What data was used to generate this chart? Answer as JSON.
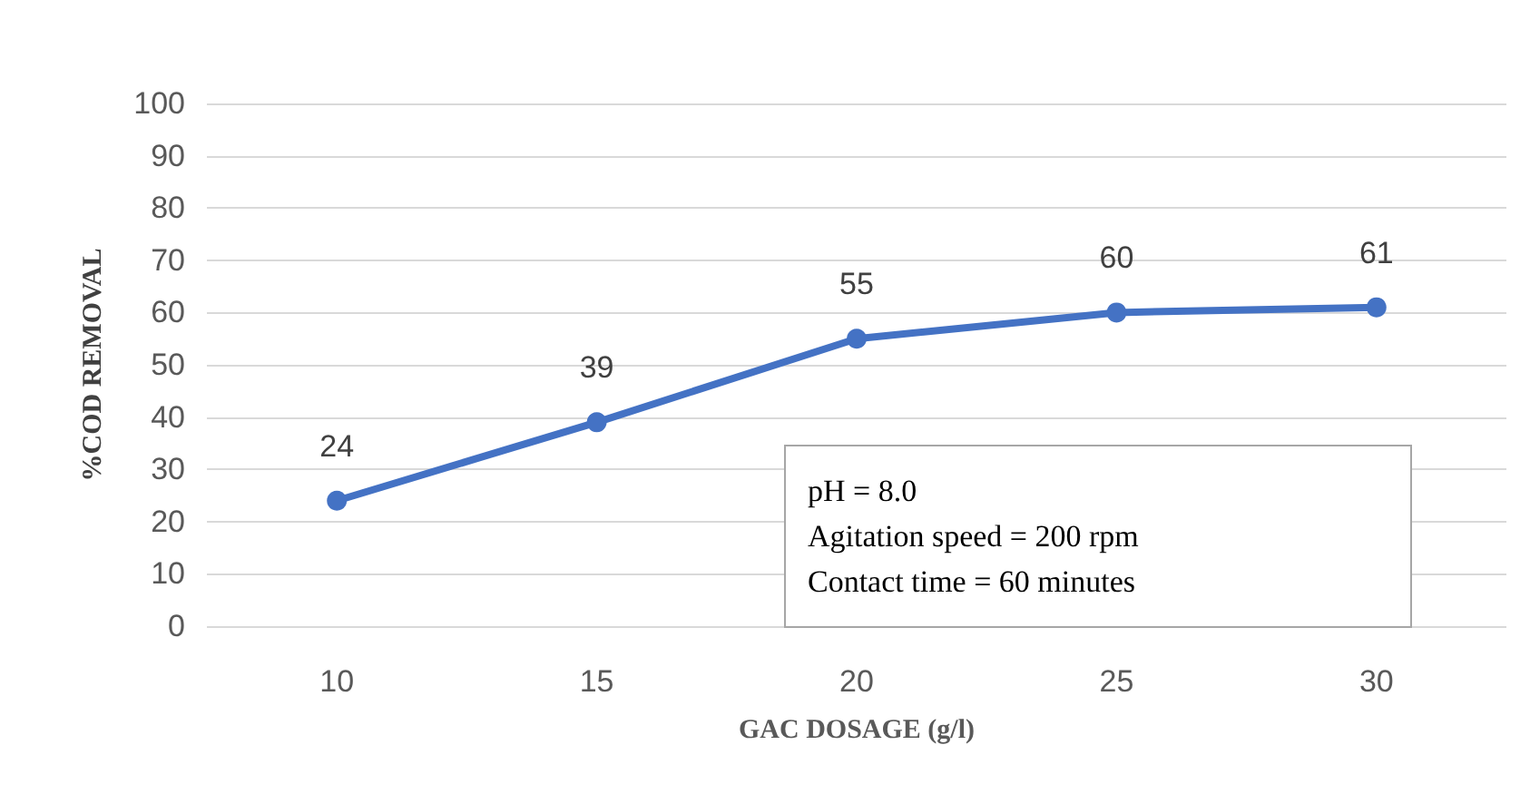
{
  "chart_data": {
    "type": "line",
    "categories": [
      "10",
      "15",
      "20",
      "25",
      "30"
    ],
    "series": [
      {
        "color": "#4472c4",
        "values": [
          24,
          39,
          55,
          60,
          61
        ]
      }
    ],
    "xlabel": "GAC DOSAGE (g/l)",
    "ylabel": "%COD REMOVAL",
    "ylim": [
      0,
      100
    ],
    "yticks": [
      0,
      10,
      20,
      30,
      40,
      50,
      60,
      70,
      80,
      90,
      100
    ],
    "grid": "y",
    "marker": "circle",
    "line_style": "solid",
    "data_labels": true,
    "annotations": [
      "pH = 8.0",
      "Agitation speed = 200 rpm",
      "Contact time = 60 minutes"
    ]
  }
}
